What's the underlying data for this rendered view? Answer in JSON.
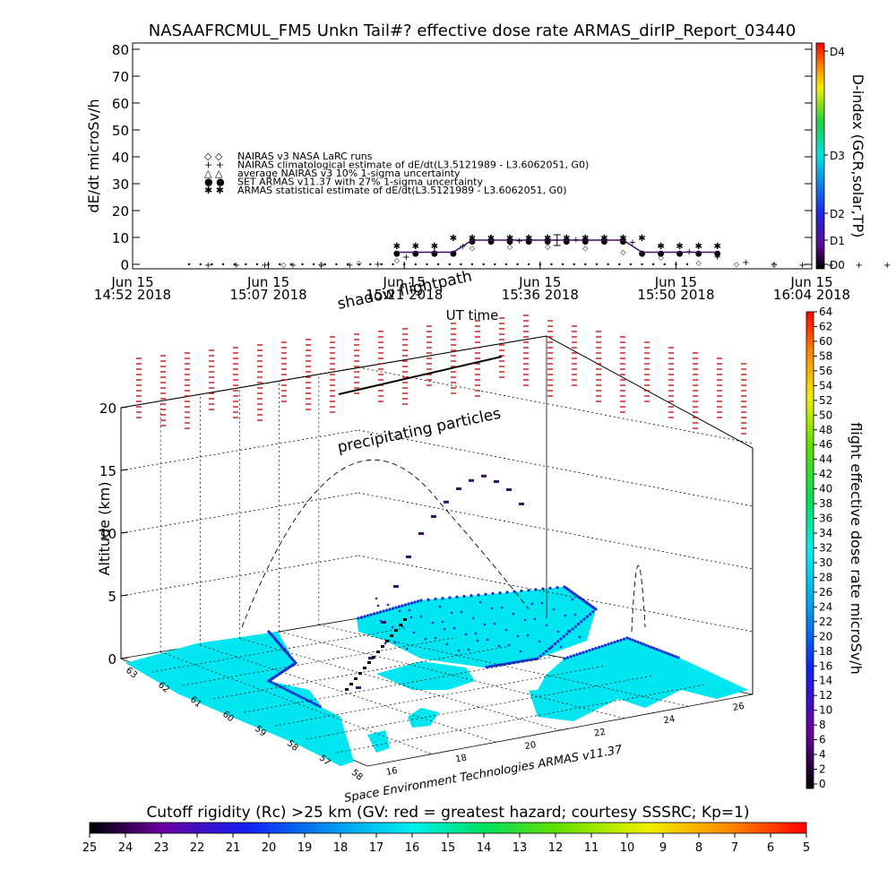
{
  "chart_data": [
    {
      "type": "scatter",
      "title": "NASAAFRCMUL_FM5 Unkn Tail#? effective dose rate ARMAS_dirIP_Report_03440",
      "xlabel": "UT time",
      "ylabel": "dE/dt microSv/h",
      "ylim": [
        0,
        80
      ],
      "y_ticks": [
        "0",
        "10",
        "20",
        "30",
        "40",
        "50",
        "60",
        "70",
        "80"
      ],
      "x_ticks": [
        {
          "line1": "Jun 15",
          "line2": "14:52 2018"
        },
        {
          "line1": "Jun 15",
          "line2": "15:07 2018"
        },
        {
          "line1": "Jun 15",
          "line2": "15:21 2018"
        },
        {
          "line1": "Jun 15",
          "line2": "15:36 2018"
        },
        {
          "line1": "Jun 15",
          "line2": "15:50 2018"
        },
        {
          "line1": "Jun 15",
          "line2": "16:04 2018"
        }
      ],
      "legend": [
        {
          "symbol": "◇ ◇",
          "label": "NAIRAS v3 NASA LaRC runs"
        },
        {
          "symbol": "+ +",
          "label": "NAIRAS climatological estimate of dE/dt(L3.5121989 - L3.6062051, G0)"
        },
        {
          "symbol": "△ △",
          "label": "average NAIRAS v3 10% 1-sigma uncertainty"
        },
        {
          "symbol": "● ●",
          "label": "SET ARMAS v11.37 with 27% 1-sigma uncertainty"
        },
        {
          "symbol": "✱ ✱",
          "label": "ARMAS statistical estimate of dE/dt(L3.5121989 - L3.6062051, G0)"
        }
      ],
      "series": [
        {
          "name": "SET ARMAS v11.37 with 27% 1-sigma uncertainty",
          "x_minutes": [
            28,
            30,
            32,
            34,
            36,
            38,
            40,
            42,
            44,
            46,
            48,
            50,
            52,
            54,
            56,
            58,
            60,
            62
          ],
          "values": [
            4.5,
            4.5,
            4.5,
            4.5,
            9,
            9,
            9,
            9,
            9,
            9,
            9,
            9,
            9,
            4.5,
            4.5,
            4.5,
            4.5,
            4.5
          ]
        },
        {
          "name": "ARMAS statistical estimate of dE/dt(L3.5121989 - L3.6062051, G0)",
          "x_minutes": [
            28,
            30,
            32,
            34,
            36,
            38,
            40,
            42,
            44,
            46,
            48,
            50,
            52,
            54,
            56,
            58,
            60,
            62
          ],
          "values": [
            7,
            7,
            7,
            10,
            10,
            10,
            10,
            10,
            10,
            10,
            10,
            10,
            10,
            10,
            7,
            7,
            7,
            7
          ]
        },
        {
          "name": "NAIRAS climatological estimate of dE/dt(L3.5121989 - L3.6062051, G0)",
          "x_minutes": [
            8,
            11,
            14,
            17,
            20,
            23,
            26,
            29,
            32,
            35,
            38,
            41,
            44,
            47,
            50,
            53,
            56,
            59,
            62,
            65,
            68,
            71,
            74,
            77,
            80,
            83,
            86
          ],
          "values": [
            0,
            0,
            0,
            0,
            0,
            0,
            0.3,
            3,
            5,
            7,
            8.5,
            9,
            9.5,
            9.5,
            9,
            8.5,
            7,
            5,
            3,
            1,
            0.3,
            0,
            0,
            0,
            0,
            0,
            0
          ]
        },
        {
          "name": "NAIRAS v3 NASA LaRC runs",
          "x_minutes": [
            16,
            20,
            24,
            28,
            32,
            36,
            40,
            44,
            48,
            52,
            56,
            60,
            64,
            68
          ],
          "values": [
            0.3,
            0.5,
            1,
            2,
            5,
            6.5,
            7,
            7,
            6.5,
            5,
            3,
            1,
            0.5,
            0.3
          ]
        }
      ],
      "right_axis": {
        "label": "D-index (GCR,solar,TP)",
        "ticks": [
          "D0",
          "D1",
          "D2",
          "D3",
          "D4"
        ]
      }
    },
    {
      "type": "scatter",
      "title": "",
      "zlabel": "Altitude (km)",
      "z_ticks": [
        "0",
        "5",
        "10",
        "15",
        "20"
      ],
      "lat_ticks": [
        "58",
        "57",
        "58",
        "59",
        "60",
        "61",
        "62",
        "63"
      ],
      "lon_ticks": [
        "16",
        "18",
        "20",
        "22",
        "24",
        "26"
      ],
      "annotations": [
        "shadow flightpath",
        "precipitating particles"
      ],
      "credit": "Space Environment Technologies ARMAS v11.37",
      "flight_profile_km": [
        0.5,
        2,
        4,
        6,
        7.5,
        8.5,
        9,
        9.3,
        9.5,
        9.3,
        8.8,
        7.5,
        6,
        4
      ],
      "colorbar": {
        "label": "flight effective dose rate microSv/h",
        "min": 0,
        "max": 64,
        "ticks": [
          "0",
          "2",
          "4",
          "6",
          "8",
          "10",
          "12",
          "14",
          "16",
          "18",
          "20",
          "22",
          "24",
          "26",
          "28",
          "30",
          "32",
          "34",
          "36",
          "38",
          "40",
          "42",
          "44",
          "46",
          "48",
          "50",
          "52",
          "54",
          "56",
          "58",
          "60",
          "62",
          "64"
        ]
      }
    },
    {
      "type": "heatmap",
      "title": "Cutoff rigidity (Rc) >25 km (GV: red = greatest hazard; courtesy SSSRC; Kp=1)",
      "colorbar_ticks": [
        "25",
        "24",
        "23",
        "22",
        "21",
        "20",
        "19",
        "18",
        "17",
        "16",
        "15",
        "14",
        "13",
        "12",
        "11",
        "10",
        "9",
        "8",
        "7",
        "6",
        "5"
      ]
    }
  ]
}
